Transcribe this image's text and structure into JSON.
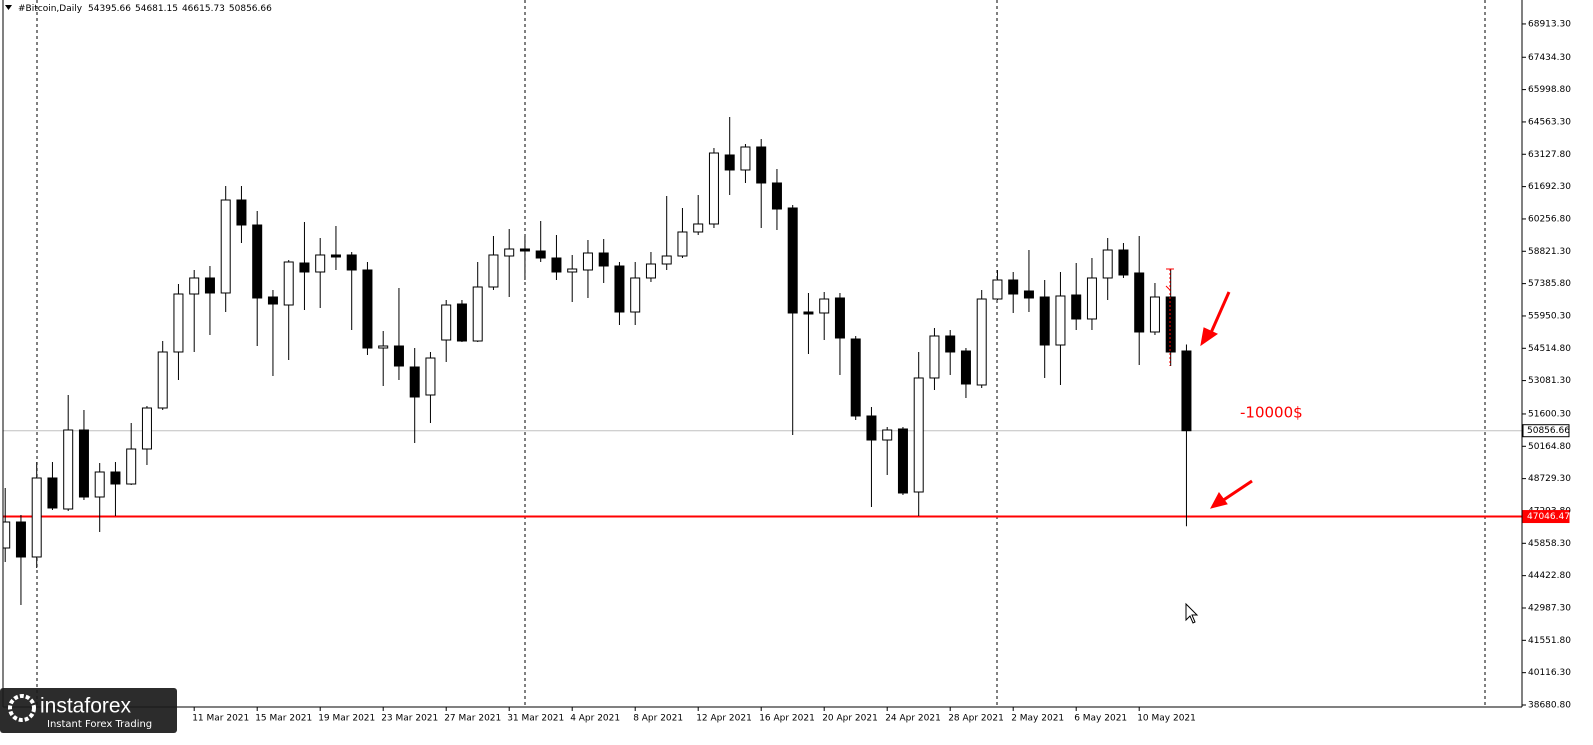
{
  "chart_data": {
    "type": "candlestick",
    "title": "#Bitcoin,Daily",
    "categories": [
      null,
      null,
      null,
      null,
      null,
      null,
      null,
      null,
      null,
      null,
      null,
      null,
      "11 Mar 2021",
      null,
      null,
      null,
      "15 Mar 2021",
      null,
      null,
      null,
      "19 Mar 2021",
      null,
      null,
      null,
      "23 Mar 2021",
      null,
      null,
      null,
      "27 Mar 2021",
      null,
      null,
      null,
      "31 Mar 2021",
      null,
      null,
      null,
      "4 Apr 2021",
      null,
      null,
      null,
      "8 Apr 2021",
      null,
      null,
      null,
      "12 Apr 2021",
      null,
      null,
      null,
      "16 Apr 2021",
      null,
      null,
      null,
      "20 Apr 2021",
      null,
      null,
      null,
      "24 Apr 2021",
      null,
      null,
      null,
      "28 Apr 2021",
      null,
      null,
      null,
      "2 May 2021",
      null,
      null,
      null,
      "6 May 2021",
      null,
      null,
      null,
      "10 May 2021",
      null,
      null,
      null
    ],
    "open": [
      45650,
      46804,
      45251,
      48758,
      47381,
      50888,
      47914,
      49024,
      48491,
      50045,
      51865,
      54351,
      56925,
      57636,
      56970,
      61098,
      59988,
      56792,
      56437,
      58301,
      57902,
      58657,
      58657,
      57991,
      54528,
      54617,
      53685,
      52442,
      54883,
      56481,
      54839,
      57236,
      58612,
      58923,
      58834,
      58523,
      57902,
      57991,
      58745,
      58168,
      56126,
      57636,
      58257,
      58612,
      59678,
      60033,
      63096,
      62430,
      63451,
      61853,
      60743,
      56126,
      56082,
      56748,
      54928,
      51510,
      50444,
      50933,
      48136,
      53197,
      55061,
      54395,
      52886,
      56703,
      57547,
      57059,
      56792,
      54661,
      56881,
      55816,
      57636,
      58878,
      57858,
      55239,
      56792,
      54395.66
    ],
    "high": [
      48314,
      47115,
      49468,
      49468,
      52442,
      51776,
      49423,
      49468,
      51199,
      51954,
      54839,
      57369,
      57991,
      58168,
      61719,
      61719,
      60610,
      57103,
      58435,
      60121,
      59411,
      59944,
      58790,
      58346,
      55283,
      57192,
      54528,
      54351,
      56659,
      56659,
      58346,
      59500,
      59811,
      59500,
      60166,
      59544,
      58657,
      59322,
      59367,
      58346,
      58346,
      58790,
      61276,
      60743,
      61320,
      63406,
      64782,
      63584,
      63806,
      62474,
      60876,
      56970,
      57014,
      56970,
      55061,
      51909,
      51021,
      51021,
      54351,
      55416,
      55327,
      54528,
      57103,
      57991,
      57902,
      58878,
      57547,
      57902,
      58301,
      58523,
      59411,
      59189,
      59500,
      57414,
      58035,
      54681.15
    ],
    "low": [
      45029,
      43120,
      44762,
      47337,
      47293,
      47781,
      46361,
      47071,
      48447,
      49335,
      51776,
      53108,
      54351,
      55105,
      56126,
      59189,
      54617,
      53285,
      53996,
      56215,
      56304,
      57991,
      55327,
      54218,
      52841,
      53108,
      50311,
      51199,
      53907,
      54795,
      54795,
      57103,
      56792,
      57547,
      58346,
      57547,
      56570,
      56748,
      57414,
      55549,
      55549,
      57458,
      57991,
      58523,
      59544,
      59855,
      61320,
      61853,
      59855,
      59766,
      50666,
      54262,
      54883,
      53330,
      51332,
      47470,
      48891,
      48003,
      47071,
      52664,
      53330,
      52309,
      52753,
      56659,
      56082,
      56126,
      53197,
      52886,
      55327,
      55327,
      56659,
      57636,
      53774,
      55105,
      53729,
      46615.73
    ],
    "close": [
      46804,
      45251,
      48758,
      47426,
      50888,
      47914,
      49024,
      48491,
      50045,
      51865,
      54351,
      56925,
      57636,
      56970,
      61098,
      59988,
      56748,
      56481,
      58346,
      57902,
      58657,
      58568,
      57991,
      54528,
      54617,
      53729,
      52353,
      54084,
      56437,
      54839,
      57236,
      58657,
      58923,
      58834,
      58523,
      57902,
      58035,
      58745,
      58168,
      56126,
      57636,
      58257,
      58612,
      59678,
      60033,
      63184,
      62430,
      63451,
      61853,
      60698,
      56082,
      56038,
      56703,
      54972,
      51510,
      50444,
      50888,
      48092,
      53197,
      55061,
      54351,
      52930,
      56703,
      57547,
      56925,
      56748,
      54661,
      56837,
      55816,
      57636,
      58878,
      57769,
      55239,
      56792,
      54351,
      50856.66
    ],
    "up_color": "#ffffff",
    "down_color": "#000000",
    "ylim": [
      38592,
      69976
    ],
    "yticks": [
      {
        "value": 68913.3,
        "label": "68913.30"
      },
      {
        "value": 67434.3,
        "label": "67434.30"
      },
      {
        "value": 65998.8,
        "label": "65998.80"
      },
      {
        "value": 64563.3,
        "label": "64563.30"
      },
      {
        "value": 63127.8,
        "label": "63127.80"
      },
      {
        "value": 61692.3,
        "label": "61692.30"
      },
      {
        "value": 60256.8,
        "label": "60256.80"
      },
      {
        "value": 58821.3,
        "label": "58821.30"
      },
      {
        "value": 57385.8,
        "label": "57385.80"
      },
      {
        "value": 55950.3,
        "label": "55950.30"
      },
      {
        "value": 54514.8,
        "label": "54514.80"
      },
      {
        "value": 53081.3,
        "label": "53081.30"
      },
      {
        "value": 51600.3,
        "label": "51600.30"
      },
      {
        "value": 50164.8,
        "label": "50164.80"
      },
      {
        "value": 48729.3,
        "label": "48729.30"
      },
      {
        "value": 47293.8,
        "label": "47293.80"
      },
      {
        "value": 45858.3,
        "label": "45858.30"
      },
      {
        "value": 44422.8,
        "label": "44422.80"
      },
      {
        "value": 42987.3,
        "label": "42987.30"
      },
      {
        "value": 41551.8,
        "label": "41551.80"
      },
      {
        "value": 40116.3,
        "label": "40116.30"
      },
      {
        "value": 38680.8,
        "label": "38680.80"
      }
    ],
    "grid": false,
    "price_lines": [
      {
        "value": 50856.66,
        "color": "#c0c0c0"
      },
      {
        "value": 47046.47,
        "color": "#ff0000"
      }
    ],
    "annotation": "-10000$"
  },
  "logo": {
    "name": "instaforex",
    "tagline": "Instant Forex Trading"
  }
}
